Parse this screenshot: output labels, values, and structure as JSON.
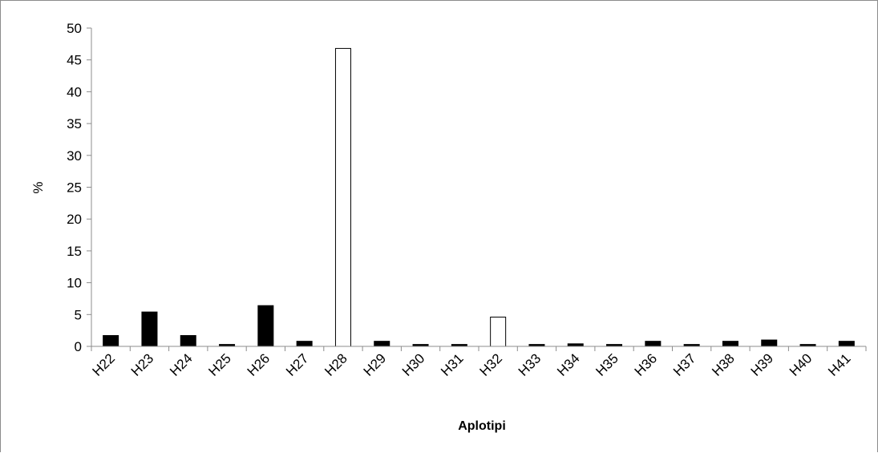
{
  "chart_data": {
    "type": "bar",
    "title": "",
    "xlabel": "Aplotipi",
    "ylabel": "%",
    "ylim": [
      0,
      50
    ],
    "yticks": [
      0,
      5,
      10,
      15,
      20,
      25,
      30,
      35,
      40,
      45,
      50
    ],
    "categories": [
      "H22",
      "H23",
      "H24",
      "H25",
      "H26",
      "H27",
      "H28",
      "H29",
      "H30",
      "H31",
      "H32",
      "H33",
      "H34",
      "H35",
      "H36",
      "H37",
      "H38",
      "H39",
      "H40",
      "H41"
    ],
    "values": [
      1.7,
      5.4,
      1.7,
      0.3,
      6.4,
      0.8,
      46.8,
      0.8,
      0.3,
      0.3,
      4.6,
      0.3,
      0.4,
      0.3,
      0.8,
      0.3,
      0.8,
      1.0,
      0.3,
      0.8
    ],
    "bar_colors": [
      "#000000",
      "#000000",
      "#000000",
      "#000000",
      "#000000",
      "#000000",
      "#ffffff",
      "#000000",
      "#000000",
      "#000000",
      "#ffffff",
      "#000000",
      "#000000",
      "#000000",
      "#000000",
      "#000000",
      "#000000",
      "#000000",
      "#000000",
      "#000000"
    ],
    "bar_outline": "#000000",
    "grid": false,
    "legend": "none"
  }
}
